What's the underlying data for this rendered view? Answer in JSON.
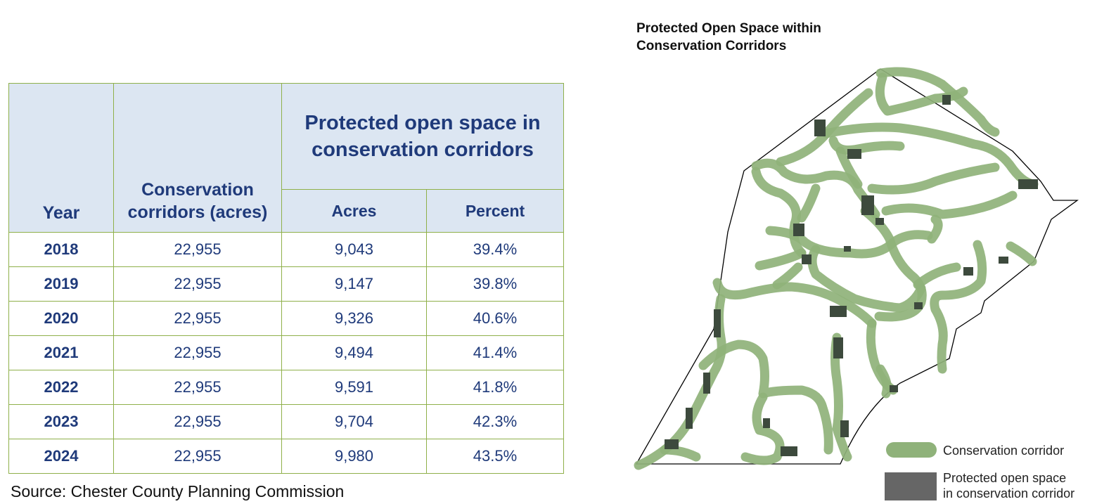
{
  "table": {
    "headers": {
      "year": "Year",
      "corridors": "Conservation corridors (acres)",
      "protected": "Protected open space in conservation corridors",
      "acres": "Acres",
      "percent": "Percent"
    },
    "rows": [
      {
        "year": "2018",
        "corridors": "22,955",
        "acres": "9,043",
        "percent": "39.4%"
      },
      {
        "year": "2019",
        "corridors": "22,955",
        "acres": "9,147",
        "percent": "39.8%"
      },
      {
        "year": "2020",
        "corridors": "22,955",
        "acres": "9,326",
        "percent": "40.6%"
      },
      {
        "year": "2021",
        "corridors": "22,955",
        "acres": "9,494",
        "percent": "41.4%"
      },
      {
        "year": "2022",
        "corridors": "22,955",
        "acres": "9,591",
        "percent": "41.8%"
      },
      {
        "year": "2023",
        "corridors": "22,955",
        "acres": "9,704",
        "percent": "42.3%"
      },
      {
        "year": "2024",
        "corridors": "22,955",
        "acres": "9,980",
        "percent": "43.5%"
      }
    ]
  },
  "source": "Source: Chester County Planning Commission",
  "map": {
    "title_line1": "Protected Open Space within",
    "title_line2": "Conservation Corridors",
    "legend": {
      "corridor": "Conservation corridor",
      "protected_line1": "Protected open space",
      "protected_line2": "in conservation corridor"
    },
    "colors": {
      "corridor": "#8fb27a",
      "protected": "#3d4a3d",
      "boundary": "#000000"
    }
  }
}
